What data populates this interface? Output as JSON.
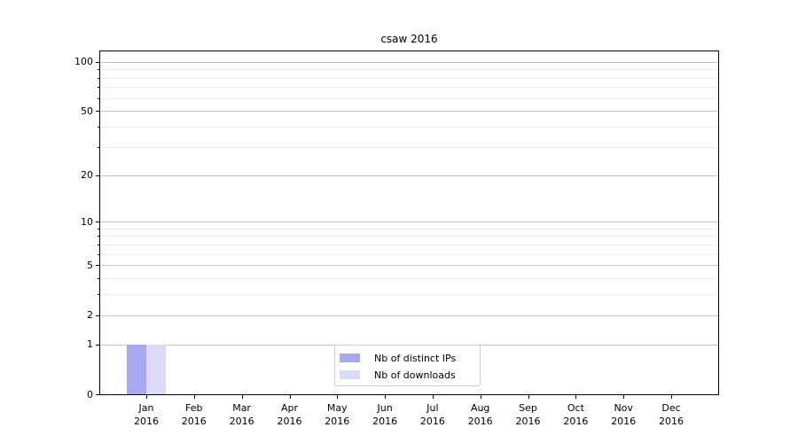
{
  "chart_data": {
    "type": "bar",
    "title": "csaw 2016",
    "categories": [
      "Jan",
      "Feb",
      "Mar",
      "Apr",
      "May",
      "Jun",
      "Jul",
      "Aug",
      "Sep",
      "Oct",
      "Nov",
      "Dec"
    ],
    "category_year": "2016",
    "series": [
      {
        "name": "Nb of distinct IPs",
        "color": "#a8a8f0",
        "values": [
          1,
          0,
          0,
          0,
          0,
          0,
          0,
          0,
          0,
          0,
          0,
          0
        ]
      },
      {
        "name": "Nb of downloads",
        "color": "#dbdbf8",
        "values": [
          1,
          0,
          0,
          0,
          0,
          0,
          0,
          0,
          0,
          0,
          0,
          0
        ]
      }
    ],
    "y_axis": {
      "scale": "log1p",
      "major_ticks": [
        0,
        1,
        2,
        5,
        10,
        20,
        50,
        100
      ],
      "minor_ticks": [
        3,
        4,
        6,
        7,
        8,
        9,
        30,
        40,
        60,
        70,
        80,
        90
      ],
      "ylim": [
        0,
        116
      ]
    },
    "grid": "on",
    "legend_position": "lower-center"
  },
  "colors": {
    "bar_distinct_ips": "#a8a8f0",
    "bar_downloads": "#dbdbf8",
    "major_grid": "#c6c6c6",
    "minor_grid": "#ebebeb",
    "spine": "#000000",
    "legend_border": "#cccccc",
    "background": "#ffffff"
  }
}
